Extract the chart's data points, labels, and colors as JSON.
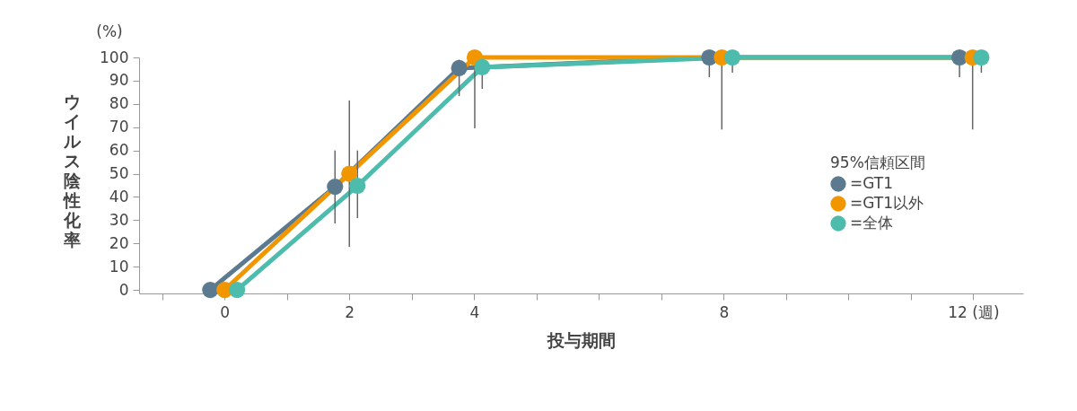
{
  "chart_data": {
    "type": "line",
    "xlabel": "投与期間",
    "ylabel": "ウイルス陰性化率",
    "legend_title": "95%信頼区間",
    "annotations": [
      "(%)"
    ],
    "xlim": [
      -1.37,
      12.8
    ],
    "xticks": [
      {
        "value": -1,
        "label": null
      },
      0,
      {
        "value": 1,
        "label": null
      },
      2,
      {
        "value": 3,
        "label": null
      },
      4,
      {
        "value": 5,
        "label": null
      },
      {
        "value": 6,
        "label": null
      },
      {
        "value": 7,
        "label": null
      },
      8,
      {
        "value": 9,
        "label": null
      },
      {
        "value": 10,
        "label": null
      },
      {
        "value": 11,
        "label": null
      },
      {
        "value": 12,
        "label": "12 (週)"
      }
    ],
    "ylim": [
      -1.5,
      100
    ],
    "yticks": [
      0,
      10,
      20,
      30,
      40,
      50,
      60,
      70,
      80,
      90,
      100
    ],
    "grid": false,
    "legend": "right",
    "marker": "circle",
    "line_style": "solid",
    "series": [
      {
        "name": "=GT1",
        "color": "#5b7a8f",
        "x": [
          -0.23,
          1.77,
          3.76,
          7.77,
          11.78
        ],
        "values": [
          0,
          44.4,
          95.4,
          100,
          100
        ],
        "errors": [
          null,
          [
            28.6,
            60
          ],
          [
            83.4,
            99
          ],
          [
            91.5,
            100
          ],
          [
            91.5,
            100
          ]
        ]
      },
      {
        "name": "=GT1以外",
        "color": "#f29600",
        "x": [
          0,
          2,
          4.01,
          7.97,
          11.99
        ],
        "values": [
          0,
          50,
          100,
          100,
          100
        ],
        "errors": [
          null,
          [
            18.5,
            81.5
          ],
          [
            69.5,
            100
          ],
          [
            69,
            100
          ],
          [
            69,
            100
          ]
        ]
      },
      {
        "name": "=全体",
        "color": "#4dbcad",
        "x": [
          0.2,
          2.13,
          4.13,
          8.14,
          12.13
        ],
        "values": [
          0,
          44.8,
          95.8,
          100,
          100
        ],
        "errors": [
          null,
          [
            30.9,
            60
          ],
          [
            86.5,
            100
          ],
          [
            93.4,
            100
          ],
          [
            93.4,
            100
          ]
        ]
      }
    ]
  }
}
